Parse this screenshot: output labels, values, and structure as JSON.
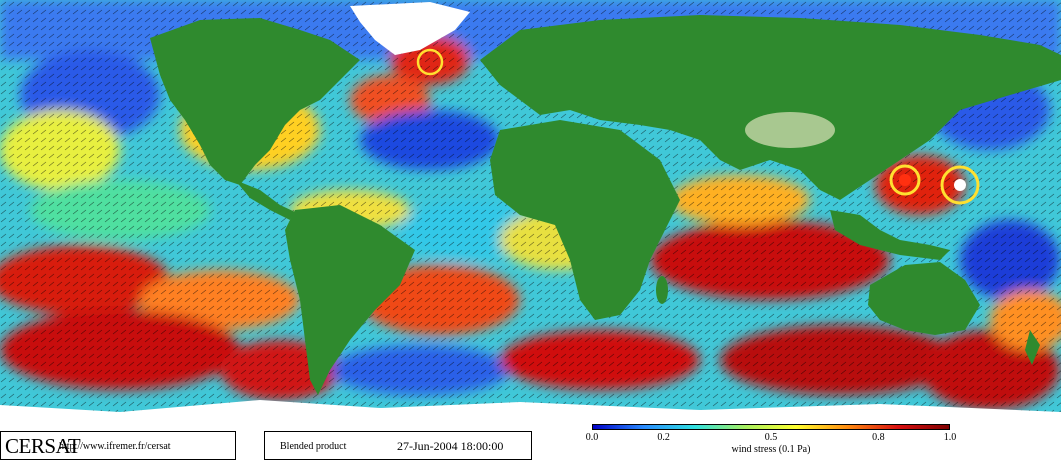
{
  "footer": {
    "logo": "CERSAT",
    "url": "http://www.ifremer.fr/cersat",
    "product": "Blended product",
    "datetime": "27-Jun-2004 18:00:00"
  },
  "colorbar": {
    "title": "wind stress (0.1 Pa)",
    "ticks": [
      "0.0",
      "0.2",
      "0.5",
      "0.8",
      "1.0"
    ],
    "colors": [
      "#0000c8",
      "#2a8cff",
      "#30e0e0",
      "#a8f060",
      "#ffff30",
      "#ff8c10",
      "#d81010",
      "#800000"
    ]
  },
  "map_colors": {
    "land": "#2f8a2e",
    "land_light": "#7cbf5a",
    "ice": "#ffffff",
    "low": "#1a3cd8",
    "mid": "#3fd0c0",
    "high": "#c81414"
  }
}
